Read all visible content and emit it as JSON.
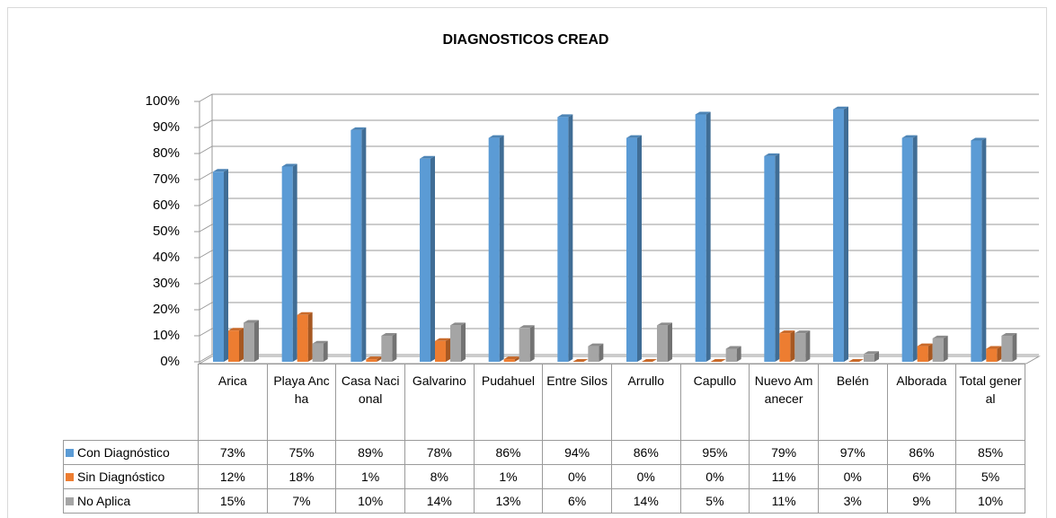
{
  "chart_data": {
    "type": "bar",
    "title": "DIAGNOSTICOS CREAD",
    "categories": [
      "Arica",
      "Playa Ancha",
      "Casa Nacional",
      "Galvarino",
      "Pudahuel",
      "Entre Silos",
      "Arrullo",
      "Capullo",
      "Nuevo Amanecer",
      "Belén",
      "Alborada",
      "Total general"
    ],
    "series": [
      {
        "name": "Con Diagnóstico",
        "color": "#5b9bd5",
        "values": [
          73,
          75,
          89,
          78,
          86,
          94,
          86,
          95,
          79,
          97,
          86,
          85
        ],
        "value_labels": [
          "73%",
          "75%",
          "89%",
          "78%",
          "86%",
          "94%",
          "86%",
          "95%",
          "79%",
          "97%",
          "86%",
          "85%"
        ]
      },
      {
        "name": "Sin Diagnóstico",
        "color": "#ed7d31",
        "values": [
          12,
          18,
          1,
          8,
          1,
          0,
          0,
          0,
          11,
          0,
          6,
          5
        ],
        "value_labels": [
          "12%",
          "18%",
          "1%",
          "8%",
          "1%",
          "0%",
          "0%",
          "0%",
          "11%",
          "0%",
          "6%",
          "5%"
        ]
      },
      {
        "name": "No Aplica",
        "color": "#a5a5a5",
        "values": [
          15,
          7,
          10,
          14,
          13,
          6,
          14,
          5,
          11,
          3,
          9,
          10
        ],
        "value_labels": [
          "15%",
          "7%",
          "10%",
          "14%",
          "13%",
          "6%",
          "14%",
          "5%",
          "11%",
          "3%",
          "9%",
          "10%"
        ]
      }
    ],
    "ylim": [
      0,
      100
    ],
    "yticks": [
      {
        "value": 0,
        "label": "0%"
      },
      {
        "value": 10,
        "label": "10%"
      },
      {
        "value": 20,
        "label": "20%"
      },
      {
        "value": 30,
        "label": "30%"
      },
      {
        "value": 40,
        "label": "40%"
      },
      {
        "value": 50,
        "label": "50%"
      },
      {
        "value": 60,
        "label": "60%"
      },
      {
        "value": 70,
        "label": "70%"
      },
      {
        "value": 80,
        "label": "80%"
      },
      {
        "value": 90,
        "label": "90%"
      },
      {
        "value": 100,
        "label": "100%"
      }
    ],
    "grid": true
  }
}
